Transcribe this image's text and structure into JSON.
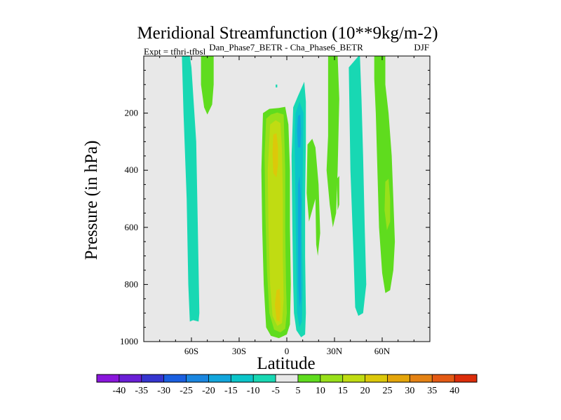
{
  "chart_data": {
    "type": "contour",
    "title": "Meridional Streamfunction (10**9kg/m-2)",
    "subtitle": "Dan_Phase7_BETR - Cha_Phase6_BETR",
    "left_label": "Expt = tfhri-tfbsl",
    "right_label": "DJF",
    "xlabel": "Latitude",
    "ylabel": "Pressure (in hPa)",
    "xlim": [
      -90,
      90
    ],
    "ylim": [
      1000,
      0
    ],
    "x_ticks": [
      {
        "value": -60,
        "label": "60S"
      },
      {
        "value": -30,
        "label": "30S"
      },
      {
        "value": 0,
        "label": "0"
      },
      {
        "value": 30,
        "label": "30N"
      },
      {
        "value": 60,
        "label": "60N"
      }
    ],
    "y_ticks": [
      {
        "value": 200,
        "label": "200"
      },
      {
        "value": 400,
        "label": "400"
      },
      {
        "value": 600,
        "label": "600"
      },
      {
        "value": 800,
        "label": "800"
      },
      {
        "value": 1000,
        "label": "1000"
      }
    ],
    "colorbar": {
      "levels": [
        -40,
        -35,
        -30,
        -25,
        -20,
        -15,
        -10,
        -5,
        5,
        10,
        15,
        20,
        25,
        30,
        35,
        40
      ],
      "colors": [
        "#8a16dc",
        "#6a1fd6",
        "#3535cf",
        "#1a5fe0",
        "#1a86e0",
        "#12a6dc",
        "#0bc5c9",
        "#18d8b3",
        "#e8e8e8",
        "#5fdc1e",
        "#98e01a",
        "#c0dc12",
        "#dcc80a",
        "#e4a50a",
        "#e48214",
        "#e45a14",
        "#dc2d0a"
      ]
    },
    "regions": [
      {
        "name": "contour-60s-neg5",
        "level": "-5",
        "color": "#18d8b3",
        "points": [
          [
            -66,
            1
          ],
          [
            -61,
            1
          ],
          [
            -60,
            40
          ],
          [
            -57,
            300
          ],
          [
            -56,
            600
          ],
          [
            -55,
            900
          ],
          [
            -55.5,
            930
          ],
          [
            -59,
            925
          ],
          [
            -61,
            930
          ],
          [
            -62,
            800
          ],
          [
            -63,
            500
          ],
          [
            -65,
            200
          ]
        ]
      },
      {
        "name": "contour-50s-pos5",
        "level": "5",
        "color": "#5fdc1e",
        "points": [
          [
            -54,
            1
          ],
          [
            -46,
            1
          ],
          [
            -46,
            100
          ],
          [
            -47,
            170
          ],
          [
            -50,
            205
          ],
          [
            -52,
            180
          ],
          [
            -54,
            100
          ]
        ]
      },
      {
        "name": "contour-eq-pos5",
        "level": "5",
        "color": "#5fdc1e",
        "points": [
          [
            -15,
            200
          ],
          [
            -11,
            185
          ],
          [
            -5,
            182
          ],
          [
            -1,
            178
          ],
          [
            1,
            240
          ],
          [
            2,
            400
          ],
          [
            2,
            600
          ],
          [
            2.5,
            800
          ],
          [
            2,
            940
          ],
          [
            0,
            975
          ],
          [
            -5,
            988
          ],
          [
            -10,
            980
          ],
          [
            -13,
            950
          ],
          [
            -14.5,
            800
          ],
          [
            -15.5,
            600
          ],
          [
            -16,
            400
          ]
        ]
      },
      {
        "name": "contour-eq-pos10",
        "level": "10",
        "color": "#98e01a",
        "points": [
          [
            -13,
            220
          ],
          [
            -10,
            205
          ],
          [
            -6,
            198
          ],
          [
            -2,
            205
          ],
          [
            -1.5,
            300
          ],
          [
            -1,
            400
          ],
          [
            -1,
            600
          ],
          [
            -0.5,
            800
          ],
          [
            0,
            900
          ],
          [
            -1,
            955
          ],
          [
            -4,
            968
          ],
          [
            -8,
            958
          ],
          [
            -11,
            900
          ],
          [
            -12.5,
            750
          ],
          [
            -13.5,
            550
          ],
          [
            -14,
            350
          ]
        ]
      },
      {
        "name": "contour-eq-pos15",
        "level": "15",
        "color": "#c0dc12",
        "points": [
          [
            -10.5,
            240
          ],
          [
            -7,
            225
          ],
          [
            -4,
            235
          ],
          [
            -3,
            330
          ],
          [
            -2.5,
            500
          ],
          [
            -2.5,
            700
          ],
          [
            -2,
            850
          ],
          [
            -3,
            935
          ],
          [
            -6,
            945
          ],
          [
            -9,
            910
          ],
          [
            -10.5,
            800
          ],
          [
            -11.5,
            600
          ],
          [
            -12,
            400
          ]
        ]
      },
      {
        "name": "contour-eq-pos20a",
        "level": "20",
        "color": "#dcc80a",
        "points": [
          [
            -8.5,
            275
          ],
          [
            -6.5,
            270
          ],
          [
            -5.5,
            320
          ],
          [
            -5.5,
            380
          ],
          [
            -6.5,
            425
          ],
          [
            -8.5,
            410
          ],
          [
            -9,
            340
          ]
        ]
      },
      {
        "name": "contour-eq-pos20b",
        "level": "20",
        "color": "#dcc80a",
        "points": [
          [
            -6.5,
            820
          ],
          [
            -4.5,
            815
          ],
          [
            -4,
            880
          ],
          [
            -4.5,
            930
          ],
          [
            -6.5,
            925
          ],
          [
            -7.5,
            870
          ]
        ]
      },
      {
        "name": "contour-10n-neg5",
        "level": "-5",
        "color": "#18d8b3",
        "points": [
          [
            3,
            350
          ],
          [
            4,
            180
          ],
          [
            7,
            140
          ],
          [
            11,
            90
          ],
          [
            12,
            160
          ],
          [
            12,
            300
          ],
          [
            11.5,
            500
          ],
          [
            11.5,
            700
          ],
          [
            12,
            900
          ],
          [
            11.5,
            975
          ],
          [
            9,
            985
          ],
          [
            6,
            960
          ],
          [
            4.5,
            900
          ],
          [
            4,
            800
          ],
          [
            3.5,
            600
          ]
        ]
      },
      {
        "name": "contour-10n-neg10",
        "level": "-10",
        "color": "#0bc5c9",
        "points": [
          [
            5,
            300
          ],
          [
            5.5,
            200
          ],
          [
            8,
            160
          ],
          [
            10.5,
            200
          ],
          [
            10,
            400
          ],
          [
            9.5,
            600
          ],
          [
            10,
            800
          ],
          [
            9.5,
            930
          ],
          [
            8,
            950
          ],
          [
            6.5,
            900
          ],
          [
            6,
            750
          ],
          [
            5.5,
            550
          ]
        ]
      },
      {
        "name": "contour-10n-neg15a",
        "level": "-15",
        "color": "#12a6dc",
        "points": [
          [
            6.5,
            260
          ],
          [
            7,
            210
          ],
          [
            8.5,
            205
          ],
          [
            9,
            270
          ],
          [
            8.5,
            320
          ],
          [
            7,
            320
          ]
        ]
      },
      {
        "name": "contour-10n-neg15b",
        "level": "-15",
        "color": "#12a6dc",
        "points": [
          [
            7,
            450
          ],
          [
            8,
            420
          ],
          [
            9,
            500
          ],
          [
            8.8,
            700
          ],
          [
            9,
            850
          ],
          [
            8,
            880
          ],
          [
            7.2,
            800
          ],
          [
            7,
            600
          ]
        ]
      },
      {
        "name": "contour-eq-tiny-neg5",
        "level": "-5",
        "color": "#18d8b3",
        "points": [
          [
            -7,
            100
          ],
          [
            -6,
            100
          ],
          [
            -6,
            110
          ],
          [
            -7,
            110
          ]
        ]
      },
      {
        "name": "contour-15n-pos5",
        "level": "5",
        "color": "#5fdc1e",
        "points": [
          [
            13,
            310
          ],
          [
            16,
            290
          ],
          [
            18,
            320
          ],
          [
            20,
            450
          ],
          [
            21,
            620
          ],
          [
            19.5,
            700
          ],
          [
            18.5,
            660
          ],
          [
            18,
            500
          ],
          [
            14,
            580
          ],
          [
            12.5,
            480
          ]
        ]
      },
      {
        "name": "contour-30n-pos5",
        "level": "5",
        "color": "#5fdc1e",
        "points": [
          [
            26,
            1
          ],
          [
            32,
            1
          ],
          [
            33,
            150
          ],
          [
            32,
            400
          ],
          [
            31,
            550
          ],
          [
            29,
            600
          ],
          [
            27,
            520
          ],
          [
            25,
            400
          ],
          [
            26,
            280
          ]
        ]
      },
      {
        "name": "contour-30n-pos5b",
        "level": "5",
        "color": "#5fdc1e",
        "points": [
          [
            31.5,
            430
          ],
          [
            33,
            420
          ],
          [
            33,
            520
          ],
          [
            32,
            540
          ]
        ]
      },
      {
        "name": "contour-45n-neg5",
        "level": "-5",
        "color": "#18d8b3",
        "points": [
          [
            39,
            40
          ],
          [
            45,
            1
          ],
          [
            46,
            1
          ],
          [
            47,
            150
          ],
          [
            48,
            350
          ],
          [
            49,
            600
          ],
          [
            50,
            800
          ],
          [
            48,
            900
          ],
          [
            45,
            910
          ],
          [
            43,
            880
          ],
          [
            42,
            700
          ],
          [
            40,
            400
          ]
        ]
      },
      {
        "name": "contour-60n-pos5",
        "level": "5",
        "color": "#5fdc1e",
        "points": [
          [
            55,
            1
          ],
          [
            62,
            1
          ],
          [
            62,
            100
          ],
          [
            64,
            200
          ],
          [
            66,
            350
          ],
          [
            67,
            500
          ],
          [
            68,
            650
          ],
          [
            67,
            750
          ],
          [
            65,
            820
          ],
          [
            62,
            830
          ],
          [
            60,
            760
          ],
          [
            58,
            600
          ],
          [
            57,
            400
          ],
          [
            56,
            200
          ],
          [
            55,
            80
          ]
        ]
      },
      {
        "name": "contour-60n-pos10",
        "level": "10",
        "color": "#98e01a",
        "points": [
          [
            62,
            440
          ],
          [
            64,
            430
          ],
          [
            65,
            500
          ],
          [
            65,
            580
          ],
          [
            63,
            610
          ],
          [
            61.5,
            540
          ]
        ]
      }
    ]
  }
}
